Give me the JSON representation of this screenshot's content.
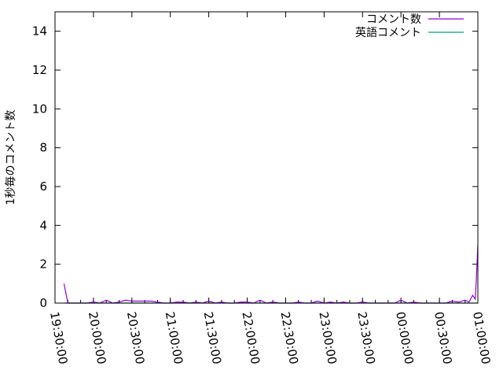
{
  "chart_data": {
    "type": "line",
    "title": "",
    "xlabel": "",
    "ylabel": "1秒毎のコメント数",
    "ylim": [
      0,
      15
    ],
    "xlim": [
      "19:30:00",
      "01:00:00"
    ],
    "yticks": [
      "0",
      "2",
      "4",
      "6",
      "8",
      "10",
      "12",
      "14"
    ],
    "xticks": [
      "19:30:00",
      "20:00:00",
      "20:30:00",
      "21:00:00",
      "21:30:00",
      "22:00:00",
      "22:30:00",
      "23:00:00",
      "23:30:00",
      "00:00:00",
      "00:30:00",
      "01:00:00"
    ],
    "grid": false,
    "legend_position": "top-right",
    "series": [
      {
        "name": "コメント数",
        "color": "#9400d3",
        "x": [
          "19:37",
          "19:40",
          "19:45",
          "19:50",
          "19:55",
          "20:00",
          "20:05",
          "20:10",
          "20:15",
          "20:20",
          "20:25",
          "20:30",
          "20:35",
          "20:40",
          "20:45",
          "20:50",
          "20:55",
          "21:00",
          "21:05",
          "21:10",
          "21:15",
          "21:20",
          "21:25",
          "21:30",
          "21:35",
          "21:40",
          "21:45",
          "21:50",
          "21:55",
          "22:00",
          "22:05",
          "22:10",
          "22:15",
          "22:20",
          "22:25",
          "22:30",
          "22:35",
          "22:40",
          "22:45",
          "22:50",
          "22:55",
          "23:00",
          "23:05",
          "23:10",
          "23:15",
          "23:20",
          "23:25",
          "23:30",
          "23:35",
          "23:40",
          "23:45",
          "23:50",
          "23:55",
          "00:00",
          "00:05",
          "00:10",
          "00:15",
          "00:20",
          "00:25",
          "00:30",
          "00:35",
          "00:40",
          "00:45",
          "00:50",
          "00:53",
          "00:56",
          "00:58",
          "00:59",
          "01:00"
        ],
        "y": [
          1,
          0,
          0,
          0,
          0,
          0.05,
          0,
          0.15,
          0,
          0.05,
          0.15,
          0.1,
          0.1,
          0.1,
          0.1,
          0.05,
          0,
          0,
          0.05,
          0.05,
          0,
          0.05,
          0,
          0.1,
          0,
          0.05,
          0,
          0,
          0.05,
          0.05,
          0,
          0.15,
          0,
          0.05,
          0,
          0,
          0,
          0.05,
          0,
          0,
          0.1,
          0,
          0.05,
          0,
          0.05,
          0,
          0,
          0.05,
          0,
          0,
          0,
          0,
          0,
          0.15,
          0,
          0.05,
          0,
          0,
          0,
          0,
          0,
          0.1,
          0.05,
          0.15,
          0.05,
          0.4,
          0.2,
          1.5,
          3
        ]
      },
      {
        "name": "英語コメント",
        "color": "#009e73",
        "x": [
          "19:37",
          "01:00"
        ],
        "y": [
          0,
          0
        ]
      }
    ]
  }
}
